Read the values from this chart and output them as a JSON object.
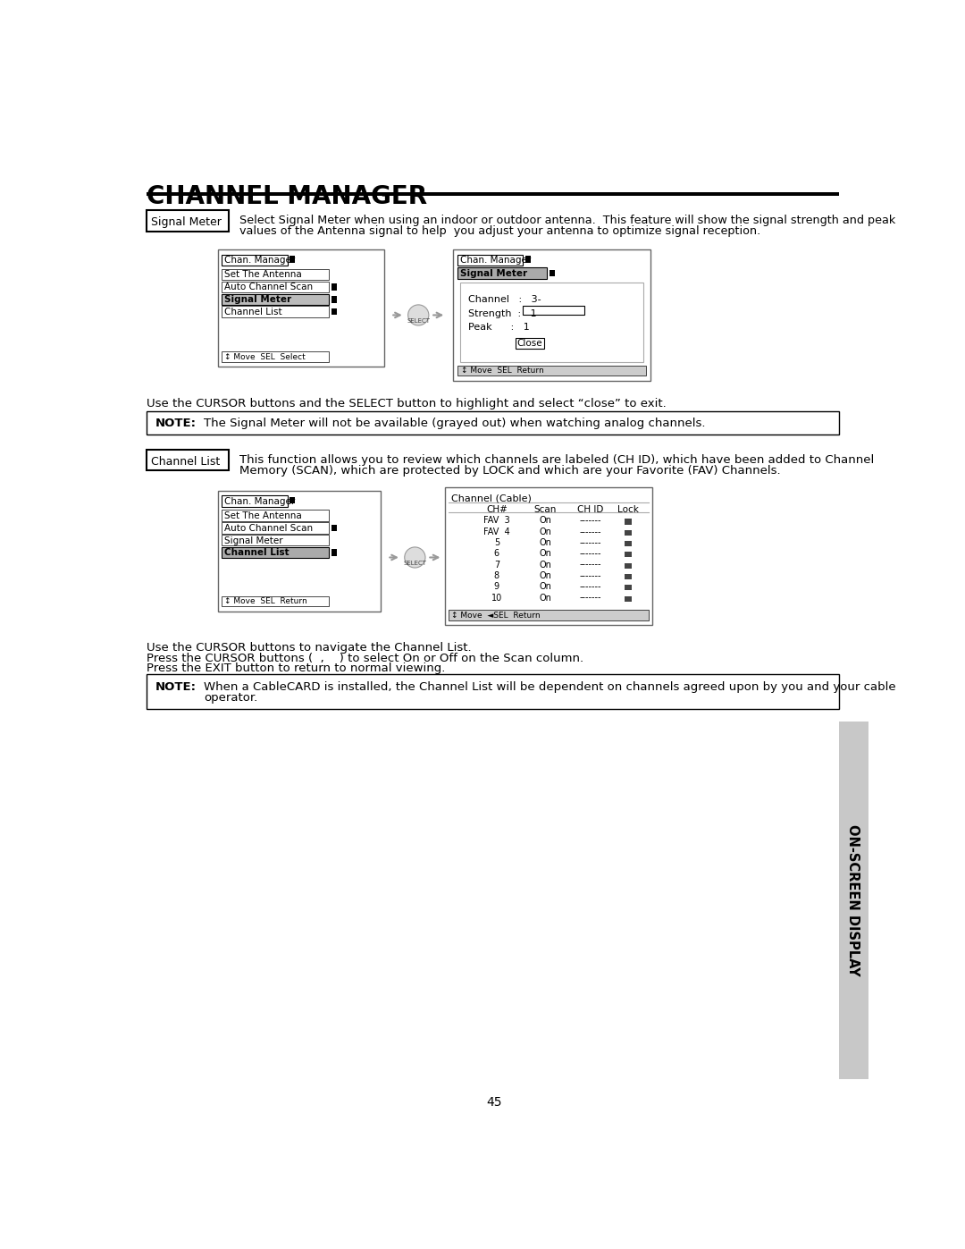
{
  "title": "CHANNEL MANAGER",
  "page_number": "45",
  "signal_meter_label": "Signal Meter",
  "signal_meter_desc_line1": "Select Signal Meter when using an indoor or outdoor antenna.  This feature will show the signal strength and peak",
  "signal_meter_desc_line2": "values of the Antenna signal to help  you adjust your antenna to optimize signal reception.",
  "cursor_note_signal": "Use the CURSOR buttons and the SELECT button to highlight and select “close” to exit.",
  "note_label": "NOTE:",
  "note_signal_text": "The Signal Meter will not be available (grayed out) when watching analog channels.",
  "channel_list_label": "Channel List",
  "channel_list_desc_line1": "This function allows you to review which channels are labeled (CH ID), which have been added to Channel",
  "channel_list_desc_line2": "Memory (SCAN), which are protected by LOCK and which are your Favorite (FAV) Channels.",
  "cursor_note_channel1": "Use the CURSOR buttons to navigate the Channel List.",
  "cursor_note_channel2": "Press the CURSOR buttons (  ,    ) to select On or Off on the Scan column.",
  "cursor_note_channel3": "Press the EXIT button to return to normal viewing.",
  "note_channel_line1": "When a CableCARD is installed, the Channel List will be dependent on channels agreed upon by you and your cable",
  "note_channel_line2": "operator.",
  "sidebar_text": "ON-SCREEN DISPLAY",
  "bg_color": "#ffffff"
}
